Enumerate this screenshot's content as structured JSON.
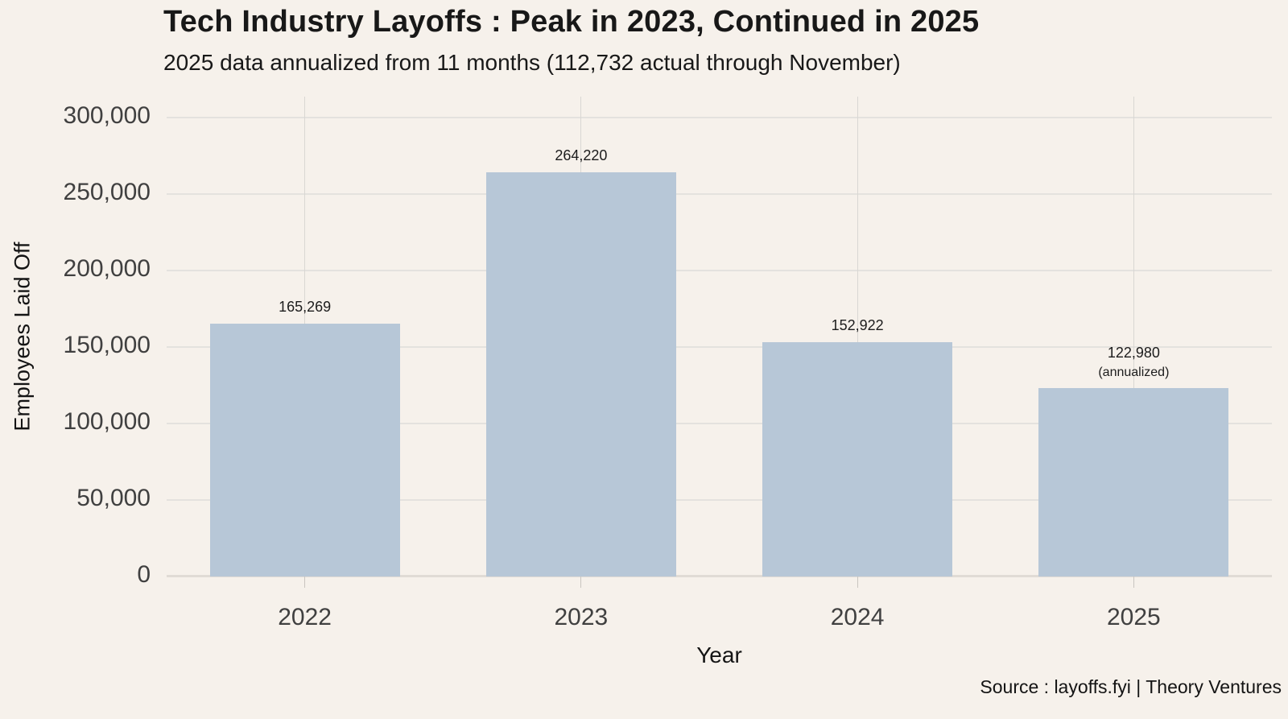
{
  "page": {
    "title": "Tech Industry Layoffs : Peak in 2023, Continued in 2025",
    "subtitle": "2025 data annualized from 11 months (112,732 actual through November)",
    "source": "Source : layoffs.fyi | Theory Ventures"
  },
  "chart_data": {
    "type": "bar",
    "title": "Tech Industry Layoffs : Peak in 2023, Continued in 2025",
    "subtitle": "2025 data annualized from 11 months (112,732 actual through November)",
    "xlabel": "Year",
    "ylabel": "Employees Laid Off",
    "categories": [
      "2022",
      "2023",
      "2024",
      "2025"
    ],
    "values": [
      165269,
      264220,
      152922,
      122980
    ],
    "value_labels": [
      "165,269",
      "264,220",
      "152,922",
      "122,980"
    ],
    "value_sublabels": [
      "",
      "",
      "",
      "(annualized)"
    ],
    "ylim": [
      0,
      300000
    ],
    "ytick_values": [
      0,
      50000,
      100000,
      150000,
      200000,
      250000,
      300000
    ],
    "ytick_labels": [
      "0",
      "50,000",
      "100,000",
      "150,000",
      "200,000",
      "250,000",
      "300,000"
    ],
    "grid": true,
    "legend_position": "none",
    "source": "Source : layoffs.fyi | Theory Ventures",
    "colors": {
      "background": "#F6F1EB",
      "bar": "#B7C7D7",
      "grid_horizontal": "#E4E2DE",
      "grid_vertical": "#D9D7D3",
      "baseline": "#E0DBD5",
      "tick": "#C9C5C0",
      "title_text": "#181818",
      "tick_text": "#404040",
      "axis_label_text": "#141414",
      "value_label_text": "#1C1C1C",
      "source_text": "#141414"
    }
  }
}
